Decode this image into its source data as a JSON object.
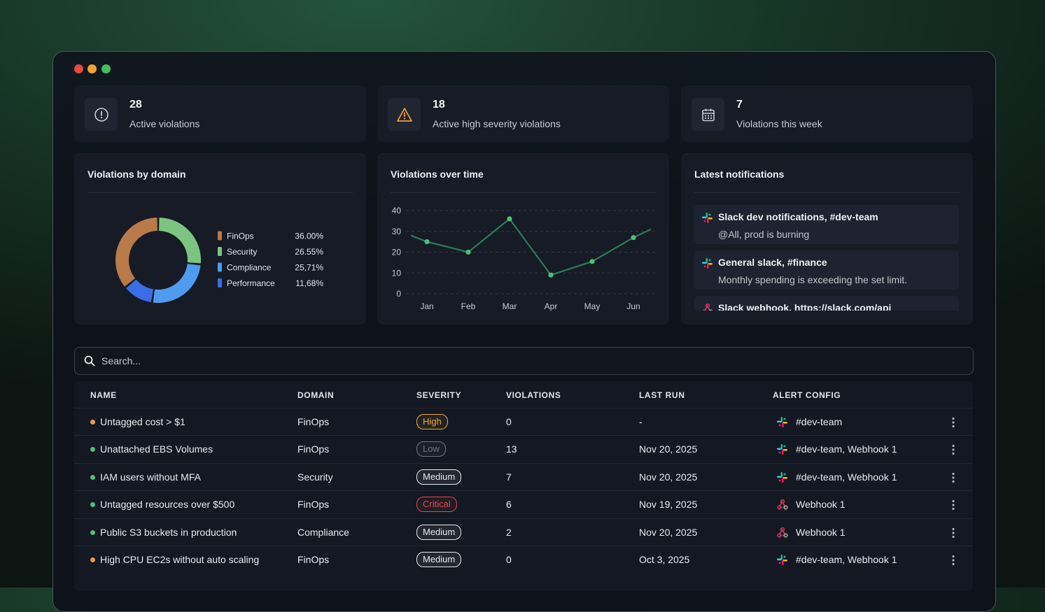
{
  "stats": [
    {
      "value": 28,
      "label": "Active violations"
    },
    {
      "value": 18,
      "label": "Active high severity violations"
    },
    {
      "value": 7,
      "label": "Violations this week"
    }
  ],
  "chart_data": [
    {
      "type": "pie",
      "title": "Violations by domain",
      "categories": [
        "FinOps",
        "Security",
        "Compliance",
        "Performance"
      ],
      "values": [
        36.0,
        26.55,
        25.71,
        11.68
      ],
      "value_labels": [
        "36.00%",
        "26.55%",
        "25,71%",
        "11,68%"
      ],
      "colors": [
        "#b97a4a",
        "#7cc47f",
        "#4f9bf0",
        "#3b6ee6"
      ]
    },
    {
      "type": "line",
      "title": "Violations over time",
      "categories": [
        null,
        "Jan",
        "Feb",
        "Mar",
        "Apr",
        "May",
        "Jun",
        null
      ],
      "values": [
        28,
        25,
        20,
        36,
        9,
        15.5,
        27,
        31
      ],
      "color": "#2f7a58",
      "point_color": "#4cc07a",
      "ylim": [
        0,
        40
      ],
      "yticks": [
        0,
        10,
        20,
        30,
        40
      ],
      "grid": true
    }
  ],
  "notifications": {
    "title": "Latest notifications",
    "items": [
      {
        "title": "Slack dev notifications, #dev-team",
        "message": "@All, prod is burning"
      },
      {
        "title": "General slack, #finance",
        "message": "Monthly spending is exceeding the set limit."
      },
      {
        "title": "Slack webhook, https://slack.com/api"
      }
    ]
  },
  "search": {
    "placeholder": "Search..."
  },
  "table": {
    "columns": [
      "NAME",
      "DOMAIN",
      "SEVERITY",
      "VIOLATIONS",
      "LAST RUN",
      "ALERT CONFIG"
    ],
    "rows": [
      [
        "Untagged cost > $1",
        "FinOps",
        "High",
        0,
        "-",
        "#dev-team"
      ],
      [
        "Unattached EBS Volumes",
        "FinOps",
        "Low",
        13,
        "Nov 20, 2025",
        "#dev-team, Webhook 1"
      ],
      [
        "IAM users without MFA",
        "Security",
        "Medium",
        7,
        "Nov 20, 2025",
        "#dev-team, Webhook 1"
      ],
      [
        "Untagged resources over $500",
        "FinOps",
        "Critical",
        6,
        "Nov 19, 2025",
        "Webhook 1"
      ],
      [
        "Public S3 buckets in production",
        "Compliance",
        "Medium",
        2,
        "Nov 20, 2025",
        "Webhook 1"
      ],
      [
        "High CPU EC2s without auto scaling",
        "FinOps",
        "Medium",
        0,
        "Oct 3, 2025",
        "#dev-team, Webhook 1"
      ]
    ],
    "status_colors": [
      "#f09a3e",
      "#4cc07a",
      "#4cc07a",
      "#4cc07a",
      "#4cc07a",
      "#f09a3e"
    ],
    "severity_colors": [
      "#f0a53a",
      "#6f7685",
      "#e8eaee",
      "#e5484d",
      "#e8eaee",
      "#e8eaee"
    ],
    "alert_icons": [
      "slack",
      "slack",
      "slack",
      "webhook",
      "webhook",
      "slack"
    ]
  }
}
